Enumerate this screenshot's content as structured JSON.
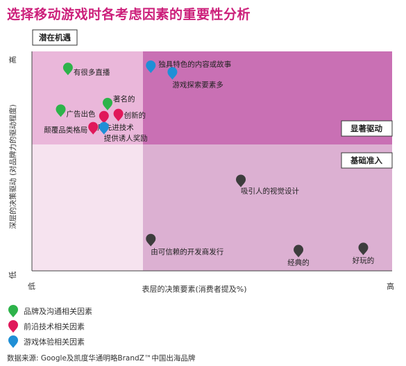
{
  "title": "选择移动游戏时各考虑因素的重要性分析",
  "chart_data": {
    "type": "scatter",
    "quadrants": {
      "top_left": "潜在机遇",
      "top_right": "显著驱动",
      "bottom_right": "基础准入"
    },
    "xlabel": "表层的决策要素(消费者提及%)",
    "ylabel": "深层的决策驱动 (对品牌力的驱动程度)",
    "x_axis": {
      "low": "低",
      "high": "高"
    },
    "y_axis": {
      "low": "低",
      "high": "高"
    },
    "xlim": [
      0,
      100
    ],
    "ylim": [
      0,
      100
    ],
    "categories": [
      {
        "key": "brand",
        "name": "品牌及沟通相关因素",
        "color": "#2db34a"
      },
      {
        "key": "tech",
        "name": "前沿技术相关因素",
        "color": "#e0185a"
      },
      {
        "key": "exp",
        "name": "游戏体验相关因素",
        "color": "#1f8fd6"
      },
      {
        "key": "basic",
        "color": "#3d3d3d"
      }
    ],
    "points": [
      {
        "label": "有很多直播",
        "x": 10,
        "y": 92,
        "cat": "brand"
      },
      {
        "label": "著名的",
        "x": 21,
        "y": 76,
        "cat": "brand"
      },
      {
        "label": "广告出色",
        "x": 8,
        "y": 73,
        "cat": "brand"
      },
      {
        "label": "创新的",
        "x": 24,
        "y": 71,
        "cat": "tech"
      },
      {
        "label": "采用先进技术",
        "x": 20,
        "y": 70,
        "cat": "tech"
      },
      {
        "label": "颠覆品类格局",
        "x": 17,
        "y": 65,
        "cat": "tech"
      },
      {
        "label": "提供诱人奖励",
        "x": 20,
        "y": 65,
        "cat": "exp"
      },
      {
        "label": "独具特色的内容或故事",
        "x": 33,
        "y": 93,
        "cat": "exp"
      },
      {
        "label": "游戏探索要素多",
        "x": 39,
        "y": 90,
        "cat": "exp"
      },
      {
        "label": "吸引人的视觉设计",
        "x": 58,
        "y": 41,
        "cat": "basic"
      },
      {
        "label": "由可信赖的开发商发行",
        "x": 33,
        "y": 14,
        "cat": "basic"
      },
      {
        "label": "经典的",
        "x": 74,
        "y": 9,
        "cat": "basic"
      },
      {
        "label": "好玩的",
        "x": 92,
        "y": 10,
        "cat": "basic"
      }
    ]
  },
  "legend": [
    {
      "name": "品牌及沟通相关因素",
      "color": "#2db34a"
    },
    {
      "name": "前沿技术相关因素",
      "color": "#e0185a"
    },
    {
      "name": "游戏体验相关因素",
      "color": "#1f8fd6"
    }
  ],
  "source": "数据来源: Google及凯度华通明略BrandZ™中国出海品牌"
}
